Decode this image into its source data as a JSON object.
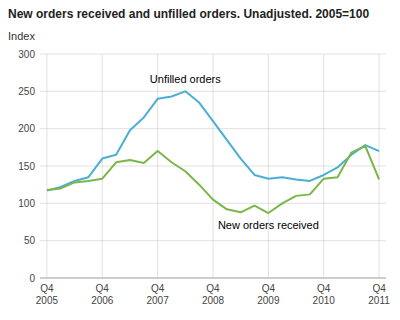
{
  "chart_data": {
    "type": "line",
    "title": "New orders received and unfilled orders. Unadjusted. 2005=100",
    "y_label": "Index",
    "categories": [
      "Q4\n2005",
      null,
      null,
      null,
      "Q4\n2006",
      null,
      null,
      null,
      "Q4\n2007",
      null,
      null,
      null,
      "Q4\n2008",
      null,
      null,
      null,
      "Q4\n2009",
      null,
      null,
      null,
      "Q4\n2010",
      null,
      null,
      null,
      "Q4\n2011"
    ],
    "series": [
      {
        "name": "Unfilled orders",
        "color": "#4bafd4",
        "values": [
          117,
          122,
          130,
          135,
          160,
          165,
          198,
          215,
          240,
          243,
          250,
          235,
          210,
          185,
          160,
          138,
          133,
          135,
          132,
          130,
          138,
          148,
          165,
          178,
          170
        ]
      },
      {
        "name": "New orders received",
        "color": "#7ab648",
        "values": [
          118,
          120,
          128,
          130,
          133,
          155,
          158,
          154,
          170,
          155,
          143,
          125,
          105,
          92,
          88,
          97,
          87,
          100,
          110,
          112,
          133,
          135,
          168,
          177,
          132
        ]
      }
    ],
    "ylim": [
      0,
      300
    ],
    "yticks": [
      0,
      50,
      100,
      150,
      200,
      250,
      300
    ],
    "grid": true
  }
}
